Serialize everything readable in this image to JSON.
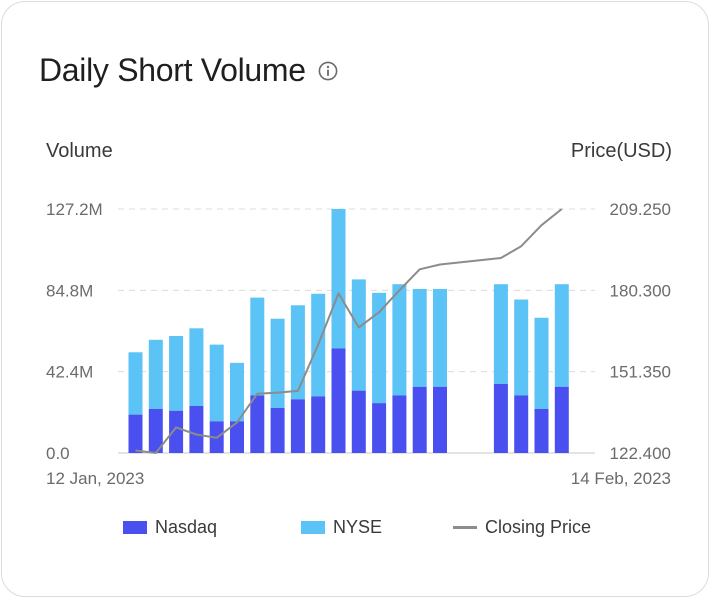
{
  "card": {
    "title": "Daily Short Volume",
    "left_axis_title": "Volume",
    "right_axis_title": "Price(USD)",
    "start_date": "12 Jan, 2023",
    "end_date": "14 Feb, 2023",
    "info_icon": "info-circle-icon"
  },
  "legend": {
    "nasdaq": "Nasdaq",
    "nyse": "NYSE",
    "closing": "Closing Price"
  },
  "colors": {
    "nasdaq": "#4a4ff0",
    "nyse": "#5bc3f5",
    "closing": "#8c8c8c",
    "grid": "#dcdcdc"
  },
  "chart_data": {
    "type": "bar",
    "stacked": true,
    "left_axis": {
      "label": "Volume",
      "ticks": [
        "0.0",
        "42.4M",
        "84.8M",
        "127.2M"
      ],
      "tick_values": [
        0,
        42.4,
        84.8,
        127.2
      ],
      "ylim": [
        0,
        127.2
      ],
      "unit": "M"
    },
    "right_axis": {
      "label": "Price(USD)",
      "ticks": [
        "122.400",
        "151.350",
        "180.300",
        "209.250"
      ],
      "tick_values": [
        122.4,
        151.35,
        180.3,
        209.25
      ],
      "ylim": [
        122.4,
        209.25
      ]
    },
    "x_start_label": "12 Jan, 2023",
    "x_end_label": "14 Feb, 2023",
    "grid": "horizontal dashed",
    "legend_position": "bottom",
    "n_slots": 23,
    "present_slots": [
      0,
      1,
      2,
      3,
      4,
      5,
      6,
      7,
      8,
      9,
      10,
      11,
      12,
      13,
      14,
      15,
      18,
      19,
      20,
      21
    ],
    "series": [
      {
        "name": "Nasdaq",
        "axis": "left",
        "values": [
          20.0,
          23.0,
          22.0,
          24.5,
          16.5,
          16.5,
          30.0,
          23.5,
          28.0,
          29.5,
          54.5,
          32.5,
          26.0,
          30.0,
          34.5,
          34.5,
          36.0,
          30.0,
          23.0,
          34.5
        ]
      },
      {
        "name": "NYSE",
        "axis": "left",
        "values": [
          32.5,
          36.0,
          39.0,
          40.5,
          40.0,
          30.5,
          51.0,
          46.5,
          49.0,
          53.5,
          72.7,
          58.0,
          57.5,
          58.0,
          51.0,
          51.0,
          52.0,
          50.0,
          47.5,
          53.5
        ]
      },
      {
        "name": "Closing Price",
        "axis": "right",
        "type": "line",
        "values": [
          123.3,
          122.4,
          131.5,
          129.0,
          127.8,
          133.3,
          143.5,
          143.9,
          144.5,
          161.0,
          179.2,
          167.1,
          172.5,
          180.3,
          187.8,
          189.5,
          191.8,
          196.0,
          203.5,
          209.25
        ]
      }
    ]
  }
}
